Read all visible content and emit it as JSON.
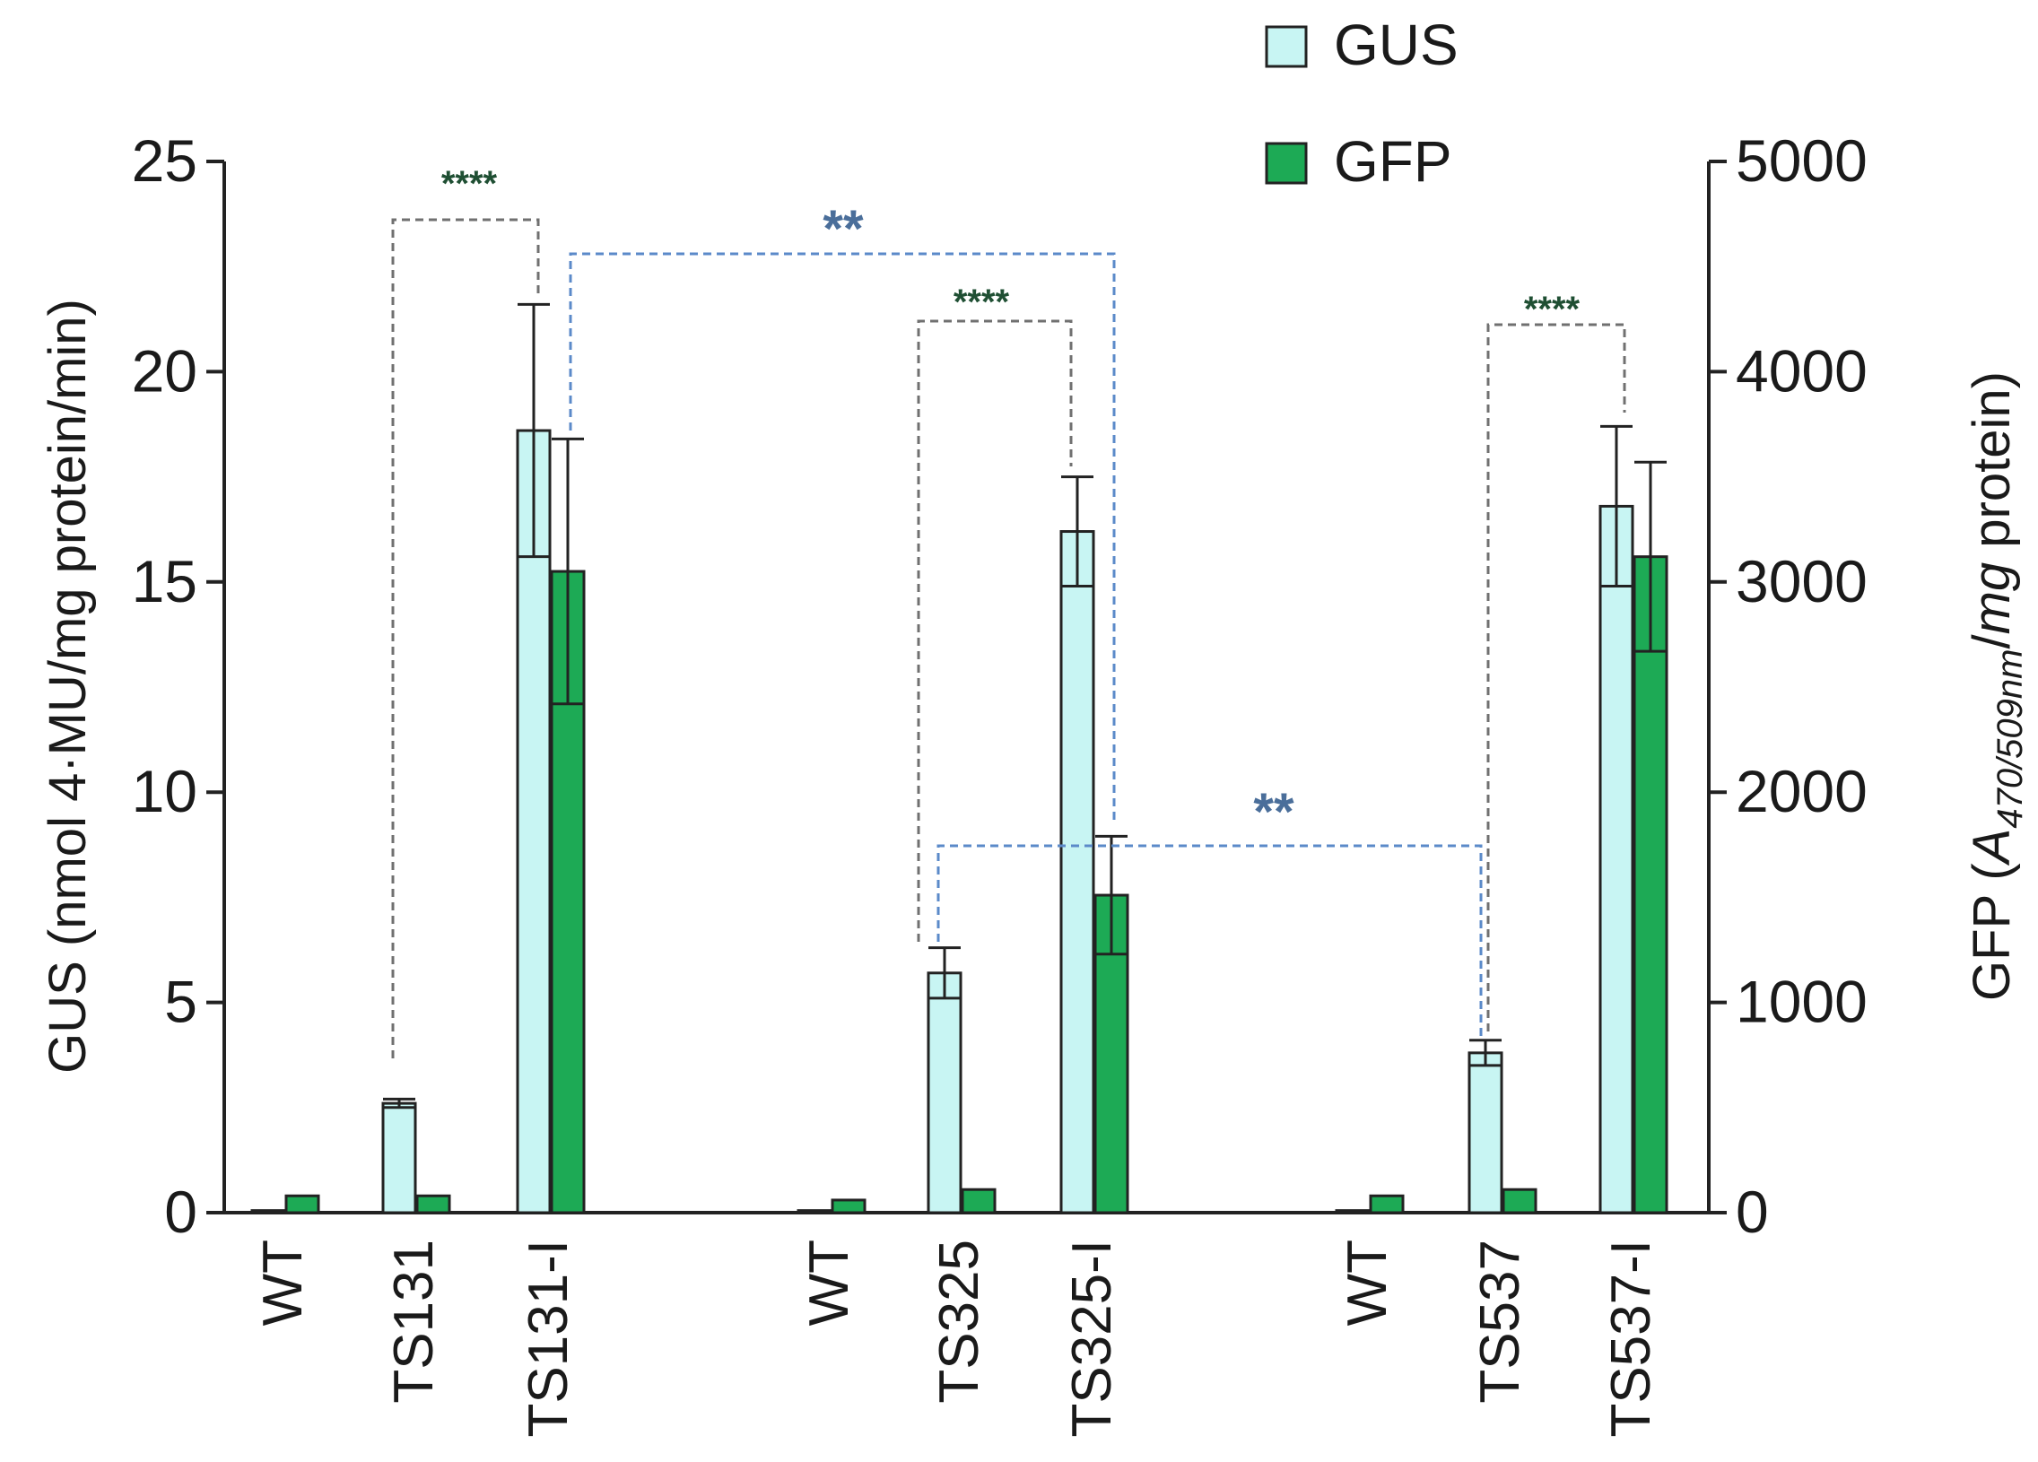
{
  "chart_data": {
    "type": "bar",
    "legend": {
      "placement": "top-center",
      "entries": [
        {
          "name": "GUS",
          "color": "#c8f5f3"
        },
        {
          "name": "GFP",
          "color": "#1daa55"
        }
      ]
    },
    "left_axis": {
      "label_main": "GUS (nmol 4·MU/mg protein/min)",
      "ylim": [
        0,
        25
      ],
      "ticks": [
        0,
        5,
        10,
        15,
        20,
        25
      ],
      "tick_labels": [
        "0",
        "5",
        "10",
        "15",
        "20",
        "25"
      ]
    },
    "right_axis": {
      "label_prefix": "GFP (",
      "label_A": "A",
      "label_sub": "470/509nm",
      "label_slash": "/",
      "label_mg": "mg",
      "label_suffix": " protein)",
      "ylim": [
        0,
        5000
      ],
      "ticks": [
        0,
        1000,
        2000,
        3000,
        4000,
        5000
      ],
      "tick_labels": [
        "0",
        "1000",
        "2000",
        "3000",
        "4000",
        "5000"
      ]
    },
    "categories": [
      "WT",
      "TS131",
      "TS131-I",
      "WT",
      "TS325",
      "TS325-I",
      "WT",
      "TS537",
      "TS537-I"
    ],
    "series": [
      {
        "name": "GUS",
        "axis": "left",
        "color": "#c8f5f3",
        "values": [
          0.05,
          2.6,
          18.6,
          0.05,
          5.7,
          16.2,
          0.05,
          3.8,
          16.8
        ],
        "errors": [
          0,
          0.1,
          3.0,
          0,
          0.6,
          1.3,
          0,
          0.3,
          1.9
        ]
      },
      {
        "name": "GFP",
        "axis": "right",
        "color": "#1daa55",
        "values": [
          80,
          80,
          3050,
          60,
          110,
          1510,
          80,
          110,
          3120
        ],
        "errors": [
          0,
          0,
          630,
          0,
          0,
          280,
          0,
          0,
          450
        ]
      }
    ],
    "significance": [
      {
        "label": "****",
        "from": 1,
        "to": 2,
        "style": "black"
      },
      {
        "label": "**",
        "from": 2,
        "to": 5,
        "style": "blue"
      },
      {
        "label": "****",
        "from": 4,
        "to": 5,
        "style": "black"
      },
      {
        "label": "**",
        "from": 4,
        "to": 7,
        "style": "blue"
      },
      {
        "label": "****",
        "from": 7,
        "to": 8,
        "style": "black"
      }
    ]
  }
}
